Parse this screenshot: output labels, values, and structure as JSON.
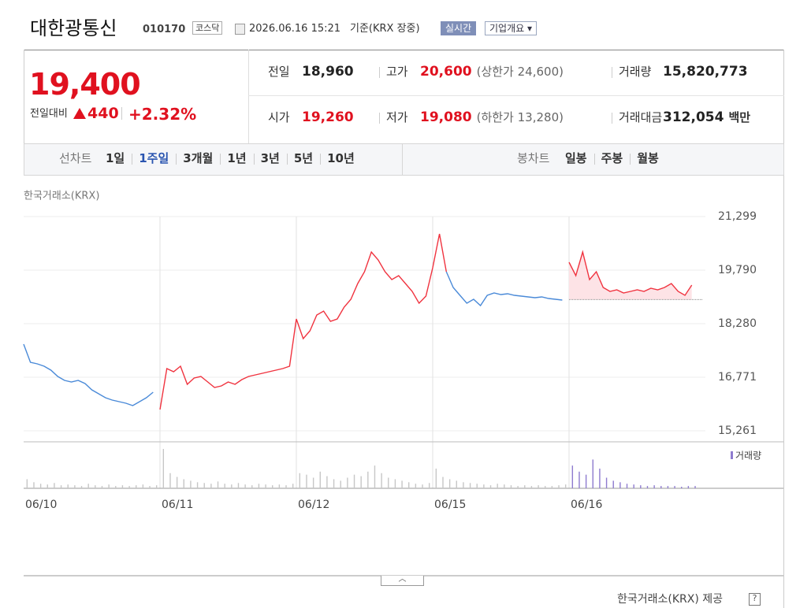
{
  "header": {
    "name": "대한광통신",
    "code": "010170",
    "market": "코스닥",
    "datetime": "2026.06.16 15:21",
    "basis": "기준(KRX 장중)",
    "realtime_button": "실시간",
    "company_button": "기업개요"
  },
  "summary": {
    "price": "19,400",
    "change_label": "전일대비",
    "change": "440",
    "change_rate": "+2.32%",
    "rows": [
      [
        {
          "label": "전일",
          "value": "18,960",
          "color": "#222222"
        },
        {
          "label": "고가",
          "value": "20,600",
          "color": "#e0111f",
          "note": "(상한가 24,600)"
        },
        {
          "label": "거래량",
          "value": "15,820,773",
          "color": "#222222"
        }
      ],
      [
        {
          "label": "시가",
          "value": "19,260",
          "color": "#e0111f"
        },
        {
          "label": "저가",
          "value": "19,080",
          "color": "#e0111f",
          "note": "(하한가 13,280)"
        },
        {
          "label": "거래대금",
          "value": "312,054",
          "color": "#222222",
          "unit": "백만"
        }
      ]
    ]
  },
  "tabs": {
    "line": {
      "label": "선차트",
      "items": [
        "1일",
        "1주일",
        "3개월",
        "1년",
        "3년",
        "5년",
        "10년"
      ],
      "selected": 1
    },
    "candle": {
      "label": "봉차트",
      "items": [
        "일봉",
        "주봉",
        "월봉"
      ]
    }
  },
  "chart_data": {
    "type": "line",
    "source_label": "한국거래소(KRX)",
    "categories": [
      "06/10",
      null,
      null,
      null,
      null,
      null,
      null,
      null,
      null,
      null,
      null,
      null,
      null,
      null,
      null,
      null,
      null,
      null,
      null,
      null,
      "06/11",
      null,
      null,
      null,
      null,
      null,
      null,
      null,
      null,
      null,
      null,
      null,
      null,
      null,
      null,
      null,
      null,
      null,
      null,
      null,
      "06/12",
      null,
      null,
      null,
      null,
      null,
      null,
      null,
      null,
      null,
      null,
      null,
      null,
      null,
      null,
      null,
      null,
      null,
      null,
      null,
      "06/15",
      null,
      null,
      null,
      null,
      null,
      null,
      null,
      null,
      null,
      null,
      null,
      null,
      null,
      null,
      null,
      null,
      null,
      null,
      null,
      "06/16",
      null,
      null,
      null,
      null,
      null,
      null,
      null,
      null,
      null,
      null,
      null,
      null,
      null,
      null,
      null,
      null,
      null,
      null,
      null
    ],
    "series": [
      {
        "color": "#4a8ad8",
        "values": [
          17703,
          17192,
          17148,
          17081,
          16970,
          16793,
          16682,
          16637,
          16682,
          16593,
          16415,
          16304,
          16193,
          16127,
          16082,
          16038,
          15971,
          16082,
          16193,
          16349,
          null,
          null,
          null,
          null,
          null,
          null,
          null,
          null,
          null,
          null,
          null,
          null,
          null,
          null,
          null,
          null,
          null,
          null,
          null,
          null,
          null,
          null,
          null,
          null,
          null,
          null,
          null,
          null,
          null,
          null,
          null,
          null,
          null,
          null,
          null,
          null,
          null,
          null,
          null,
          null,
          null,
          null,
          19745,
          19301,
          19079,
          18857,
          18968,
          18791,
          19079,
          19146,
          19102,
          19124,
          19079,
          19057,
          19035,
          19013,
          19035,
          18991,
          18968,
          18946,
          null,
          null,
          null,
          null,
          null,
          null,
          null,
          null,
          null,
          null,
          null,
          null,
          null,
          null,
          null,
          null,
          null,
          null,
          null,
          null
        ]
      },
      {
        "color": "#f0333f",
        "values": [
          null,
          null,
          null,
          null,
          null,
          null,
          null,
          null,
          null,
          null,
          null,
          null,
          null,
          null,
          null,
          null,
          null,
          null,
          null,
          null,
          15860,
          17015,
          16926,
          17081,
          16571,
          16748,
          16793,
          16637,
          16482,
          16526,
          16637,
          16571,
          16704,
          16793,
          16837,
          16882,
          16926,
          16970,
          17015,
          17081,
          18413,
          17858,
          18080,
          18524,
          18635,
          18347,
          18413,
          18746,
          18968,
          19412,
          19745,
          20300,
          20078,
          19745,
          19523,
          19634,
          19412,
          19190,
          18857,
          19057,
          19856,
          20811,
          19745,
          null,
          null,
          null,
          null,
          null,
          null,
          null,
          null,
          null,
          null,
          null,
          null,
          null,
          null,
          null,
          null,
          null,
          20012,
          19634,
          20300,
          19523,
          19745,
          19301,
          19190,
          19235,
          19146,
          19190,
          19235,
          19190,
          19279,
          19235,
          19301,
          19412,
          19190,
          19079,
          19368,
          null
        ]
      }
    ],
    "baseline": 18960,
    "fill_color": "#fde3e6",
    "ylim": [
      15261,
      21299
    ],
    "yticks": [
      {
        "value": 15261,
        "label": "15,261"
      },
      {
        "value": 16771,
        "label": "16,771"
      },
      {
        "value": 18280,
        "label": "18,280"
      },
      {
        "value": 19790,
        "label": "19,790"
      },
      {
        "value": 21299,
        "label": "21,299"
      }
    ],
    "grid": true,
    "volume": {
      "name": "거래량",
      "color": "#8e7bcf",
      "past_color": "#c6c6c6",
      "values": [
        12,
        8,
        6,
        5,
        7,
        4,
        5,
        4,
        3,
        6,
        4,
        3,
        5,
        3,
        4,
        3,
        4,
        5,
        3,
        4,
        52,
        20,
        15,
        12,
        10,
        8,
        7,
        6,
        9,
        6,
        5,
        7,
        5,
        4,
        6,
        5,
        4,
        5,
        4,
        6,
        20,
        18,
        14,
        22,
        16,
        12,
        10,
        14,
        18,
        16,
        22,
        30,
        20,
        14,
        12,
        10,
        8,
        6,
        5,
        7,
        26,
        15,
        12,
        10,
        8,
        7,
        6,
        5,
        4,
        6,
        5,
        4,
        3,
        4,
        3,
        4,
        3,
        3,
        4,
        5,
        30,
        22,
        18,
        38,
        26,
        14,
        10,
        8,
        6,
        5,
        4,
        3,
        4,
        3,
        3,
        3,
        2,
        3,
        3,
        null
      ]
    }
  },
  "footer": {
    "credit": "한국거래소(KRX) 제공"
  }
}
